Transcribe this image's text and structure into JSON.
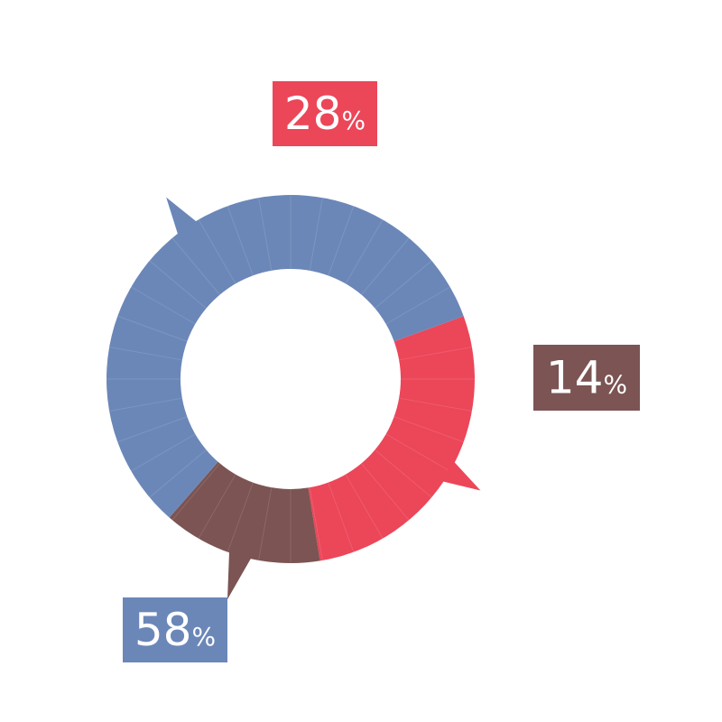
{
  "chart_data": {
    "type": "pie",
    "title": "",
    "slices": [
      {
        "label": "28%",
        "value": 28,
        "color": "#ec4659"
      },
      {
        "label": "14%",
        "value": 14,
        "color": "#7b5453"
      },
      {
        "label": "58%",
        "value": 58,
        "color": "#6b87b8"
      }
    ],
    "value_suffix": "%",
    "style": "donut with segmented ring and callout arrows"
  }
}
